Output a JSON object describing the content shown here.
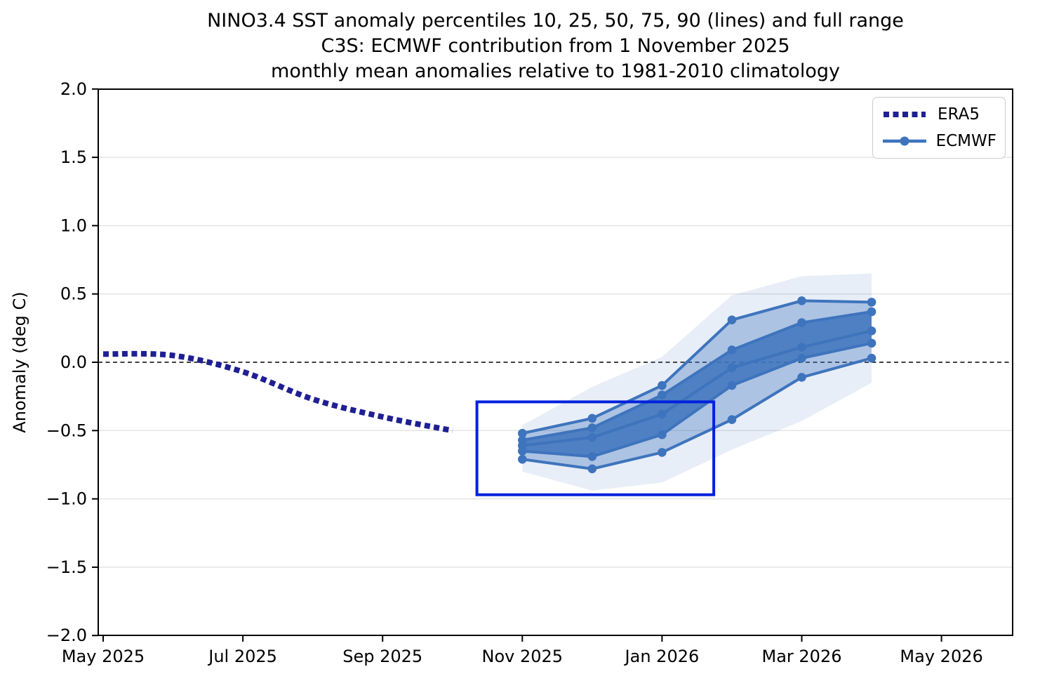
{
  "window": {
    "background": "#ffffff"
  },
  "chart_data": {
    "type": "line",
    "title_lines": [
      "NINO3.4 SST anomaly percentiles 10, 25, 50, 75, 90 (lines) and full range",
      "C3S: ECMWF contribution from 1 November 2025",
      "monthly mean anomalies relative to 1981-2010 climatology"
    ],
    "ylabel": "Anomaly (deg C)",
    "grid": "horizontal-only",
    "zero_line": {
      "shown": true,
      "style": "black dashed",
      "value": 0.0
    },
    "x_axis": {
      "tick_labels": [
        "May 2025",
        "Jul 2025",
        "Sep 2025",
        "Nov 2025",
        "Jan 2026",
        "Mar 2026",
        "May 2026"
      ],
      "tick_months_from_may2025": [
        0,
        2,
        4,
        6,
        8,
        10,
        12
      ]
    },
    "y_axis": {
      "range": [
        -2.0,
        2.0
      ],
      "ticks": [
        {
          "value": 2.0,
          "label": "2.0"
        },
        {
          "value": 1.5,
          "label": "1.5"
        },
        {
          "value": 1.0,
          "label": "1.0"
        },
        {
          "value": 0.5,
          "label": "0.5"
        },
        {
          "value": 0.0,
          "label": "0.0"
        },
        {
          "value": -0.5,
          "label": "−0.5"
        },
        {
          "value": -1.0,
          "label": "−1.0"
        },
        {
          "value": -1.5,
          "label": "−1.5"
        },
        {
          "value": -2.0,
          "label": "−2.0"
        }
      ]
    },
    "series": [
      {
        "name": "ERA5",
        "style": "thick-dotted",
        "color": "#1f1f94",
        "months": [
          "May 2025",
          "Jun 2025",
          "Jul 2025",
          "Aug 2025",
          "Sep 2025",
          "Oct 2025"
        ],
        "x_months": [
          0,
          1,
          2,
          3,
          4,
          5
        ],
        "values": [
          0.06,
          0.05,
          -0.07,
          -0.27,
          -0.4,
          -0.5
        ]
      },
      {
        "name": "ECMWF",
        "style": "percentile-fan",
        "color": "#3e74bd",
        "months": [
          "Nov 2025",
          "Dec 2025",
          "Jan 2026",
          "Feb 2026",
          "Mar 2026",
          "Apr 2026"
        ],
        "x_months": [
          6,
          7,
          8,
          9,
          10,
          11
        ],
        "percentiles": {
          "p90": [
            -0.52,
            -0.41,
            -0.17,
            0.31,
            0.45,
            0.44
          ],
          "p75": [
            -0.57,
            -0.48,
            -0.24,
            0.09,
            0.29,
            0.37
          ],
          "p50": [
            -0.61,
            -0.55,
            -0.38,
            -0.04,
            0.11,
            0.23
          ],
          "p25": [
            -0.65,
            -0.69,
            -0.53,
            -0.17,
            0.03,
            0.14
          ],
          "p10": [
            -0.71,
            -0.78,
            -0.66,
            -0.42,
            -0.11,
            0.03
          ]
        },
        "full_range": {
          "max": [
            -0.46,
            -0.18,
            0.04,
            0.49,
            0.63,
            0.65
          ],
          "min": [
            -0.8,
            -0.94,
            -0.88,
            -0.64,
            -0.43,
            -0.15
          ]
        },
        "band_opacity": {
          "inner_25_75": 0.85,
          "middle_10_90": 0.35,
          "outer_full": 0.12
        }
      }
    ],
    "annotation_box": {
      "color": "#0021dd",
      "x_start_month": 5.35,
      "x_end_month": 8.74,
      "value_top": -0.29,
      "value_bottom": -0.97
    },
    "legend": {
      "position": "top-right",
      "entries": [
        {
          "label": "ERA5",
          "swatch": "navy-dotted-line"
        },
        {
          "label": "ECMWF",
          "swatch": "blue-line-with-marker"
        }
      ]
    }
  }
}
